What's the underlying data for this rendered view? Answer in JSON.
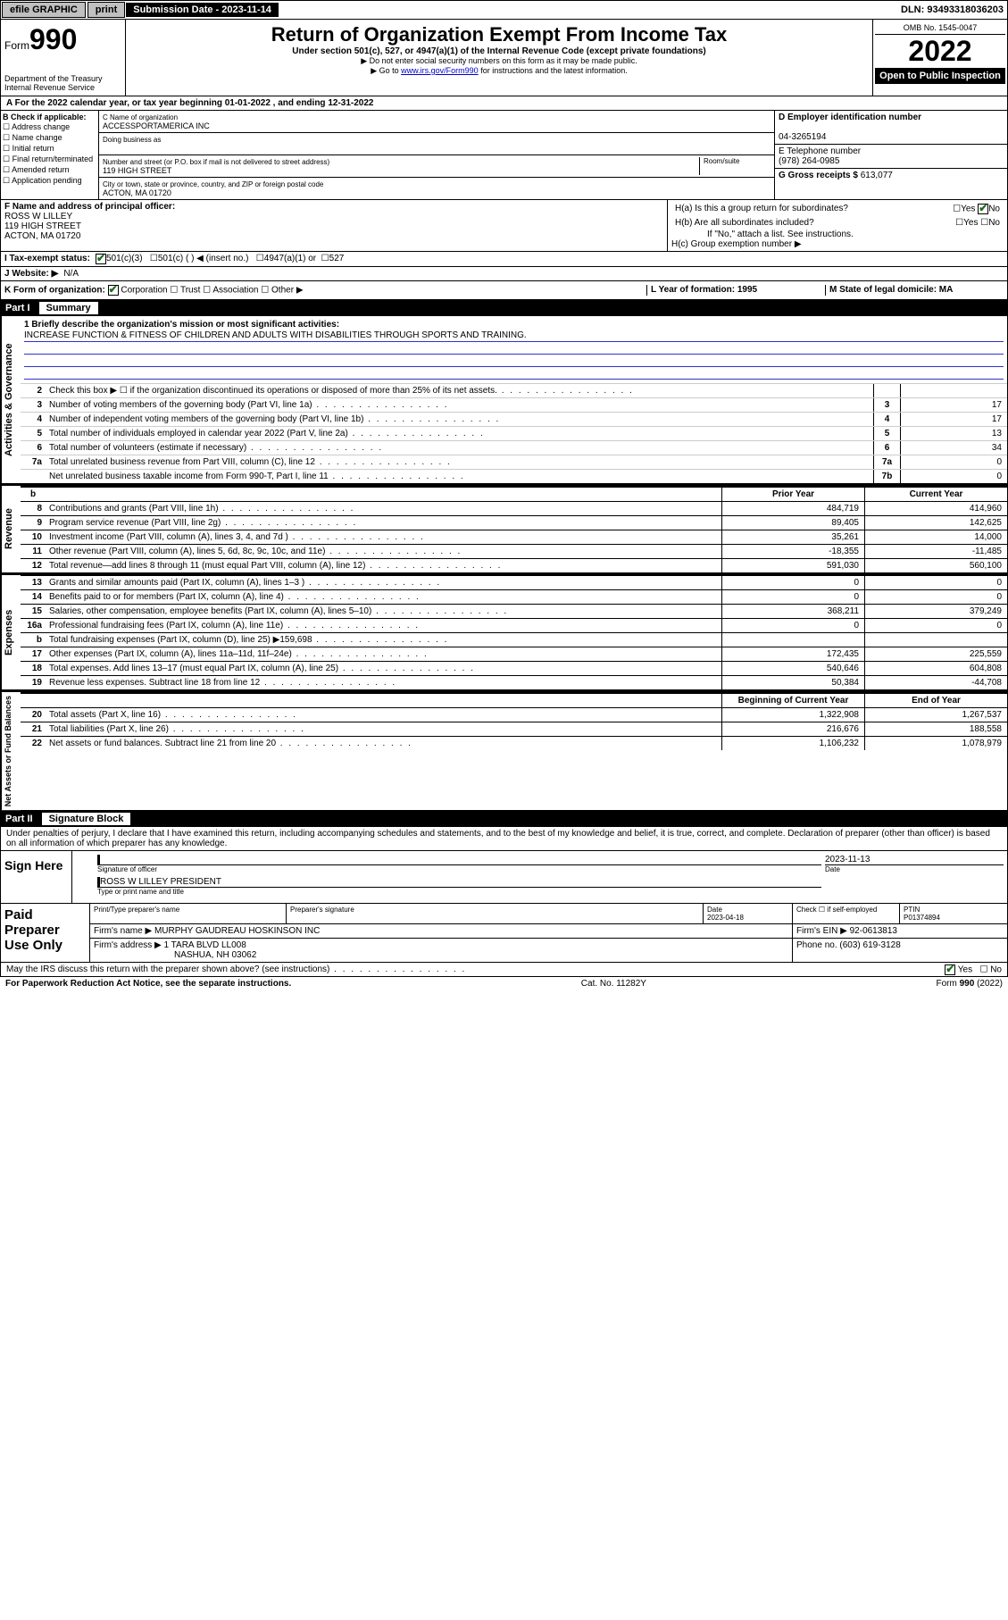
{
  "topbar": {
    "efile": "efile GRAPHIC",
    "print": "print",
    "subdate_label": "Submission Date - 2023-11-14",
    "dln": "DLN: 93493318036203"
  },
  "header": {
    "form_label": "Form",
    "form_no": "990",
    "dept": "Department of the Treasury\nInternal Revenue Service",
    "title": "Return of Organization Exempt From Income Tax",
    "sub1": "Under section 501(c), 527, or 4947(a)(1) of the Internal Revenue Code (except private foundations)",
    "sub2": "▶ Do not enter social security numbers on this form as it may be made public.",
    "sub3": "▶ Go to www.irs.gov/Form990 for instructions and the latest information.",
    "omb": "OMB No. 1545-0047",
    "year": "2022",
    "otp": "Open to Public Inspection"
  },
  "A": {
    "line": "A For the 2022 calendar year, or tax year beginning 01-01-2022   , and ending 12-31-2022"
  },
  "B": {
    "label": "B Check if applicable:",
    "opts": [
      "Address change",
      "Name change",
      "Initial return",
      "Final return/terminated",
      "Amended return",
      "Application pending"
    ]
  },
  "C": {
    "name_label": "C Name of organization",
    "name": "ACCESSPORTAMERICA INC",
    "dba_label": "Doing business as",
    "street_label": "Number and street (or P.O. box if mail is not delivered to street address)",
    "room_label": "Room/suite",
    "street": "119 HIGH STREET",
    "city_label": "City or town, state or province, country, and ZIP or foreign postal code",
    "city": "ACTON, MA  01720"
  },
  "D": {
    "label": "D Employer identification number",
    "val": "04-3265194"
  },
  "E": {
    "label": "E Telephone number",
    "val": "(978) 264-0985"
  },
  "G": {
    "label": "G Gross receipts $",
    "val": "613,077"
  },
  "F": {
    "label": "F Name and address of principal officer:",
    "name": "ROSS W LILLEY",
    "street": "119 HIGH STREET",
    "city": "ACTON, MA  01720"
  },
  "H": {
    "a": "H(a)  Is this a group return for subordinates?",
    "b": "H(b)  Are all subordinates included?",
    "bnote": "If \"No,\" attach a list. See instructions.",
    "c": "H(c)  Group exemption number ▶",
    "yes": "Yes",
    "no": "No"
  },
  "I": {
    "label": "I   Tax-exempt status:",
    "o1": "501(c)(3)",
    "o2": "501(c) (   ) ◀ (insert no.)",
    "o3": "4947(a)(1) or",
    "o4": "527"
  },
  "J": {
    "label": "J   Website: ▶",
    "val": "N/A"
  },
  "K": {
    "label": "K Form of organization:",
    "opts": [
      "Corporation",
      "Trust",
      "Association",
      "Other ▶"
    ]
  },
  "L": {
    "label": "L Year of formation: 1995"
  },
  "M": {
    "label": "M State of legal domicile: MA"
  },
  "part1": {
    "num": "Part I",
    "title": "Summary"
  },
  "mission": {
    "q1": "1  Briefly describe the organization's mission or most significant activities:",
    "text": "INCREASE FUNCTION & FITNESS OF CHILDREN AND ADULTS WITH DISABILITIES THROUGH SPORTS AND TRAINING."
  },
  "gov": [
    {
      "n": "2",
      "t": "Check this box ▶ ☐  if the organization discontinued its operations or disposed of more than 25% of its net assets.",
      "bn": "",
      "bv": ""
    },
    {
      "n": "3",
      "t": "Number of voting members of the governing body (Part VI, line 1a)",
      "bn": "3",
      "bv": "17"
    },
    {
      "n": "4",
      "t": "Number of independent voting members of the governing body (Part VI, line 1b)",
      "bn": "4",
      "bv": "17"
    },
    {
      "n": "5",
      "t": "Total number of individuals employed in calendar year 2022 (Part V, line 2a)",
      "bn": "5",
      "bv": "13"
    },
    {
      "n": "6",
      "t": "Total number of volunteers (estimate if necessary)",
      "bn": "6",
      "bv": "34"
    },
    {
      "n": "7a",
      "t": "Total unrelated business revenue from Part VIII, column (C), line 12",
      "bn": "7a",
      "bv": "0"
    },
    {
      "n": "",
      "t": "Net unrelated business taxable income from Form 990-T, Part I, line 11",
      "bn": "7b",
      "bv": "0"
    }
  ],
  "rhdr": {
    "b": "b",
    "py": "Prior Year",
    "cy": "Current Year"
  },
  "rev": [
    {
      "n": "8",
      "t": "Contributions and grants (Part VIII, line 1h)",
      "pv": "484,719",
      "cv": "414,960"
    },
    {
      "n": "9",
      "t": "Program service revenue (Part VIII, line 2g)",
      "pv": "89,405",
      "cv": "142,625"
    },
    {
      "n": "10",
      "t": "Investment income (Part VIII, column (A), lines 3, 4, and 7d )",
      "pv": "35,261",
      "cv": "14,000"
    },
    {
      "n": "11",
      "t": "Other revenue (Part VIII, column (A), lines 5, 6d, 8c, 9c, 10c, and 11e)",
      "pv": "-18,355",
      "cv": "-11,485"
    },
    {
      "n": "12",
      "t": "Total revenue—add lines 8 through 11 (must equal Part VIII, column (A), line 12)",
      "pv": "591,030",
      "cv": "560,100"
    }
  ],
  "exp": [
    {
      "n": "13",
      "t": "Grants and similar amounts paid (Part IX, column (A), lines 1–3 )",
      "pv": "0",
      "cv": "0"
    },
    {
      "n": "14",
      "t": "Benefits paid to or for members (Part IX, column (A), line 4)",
      "pv": "0",
      "cv": "0"
    },
    {
      "n": "15",
      "t": "Salaries, other compensation, employee benefits (Part IX, column (A), lines 5–10)",
      "pv": "368,211",
      "cv": "379,249"
    },
    {
      "n": "16a",
      "t": "Professional fundraising fees (Part IX, column (A), line 11e)",
      "pv": "0",
      "cv": "0"
    },
    {
      "n": "b",
      "t": "Total fundraising expenses (Part IX, column (D), line 25) ▶159,698",
      "pv": "",
      "cv": ""
    },
    {
      "n": "17",
      "t": "Other expenses (Part IX, column (A), lines 11a–11d, 11f–24e)",
      "pv": "172,435",
      "cv": "225,559"
    },
    {
      "n": "18",
      "t": "Total expenses. Add lines 13–17 (must equal Part IX, column (A), line 25)",
      "pv": "540,646",
      "cv": "604,808"
    },
    {
      "n": "19",
      "t": "Revenue less expenses. Subtract line 18 from line 12",
      "pv": "50,384",
      "cv": "-44,708"
    }
  ],
  "nhdr": {
    "py": "Beginning of Current Year",
    "cy": "End of Year"
  },
  "net": [
    {
      "n": "20",
      "t": "Total assets (Part X, line 16)",
      "pv": "1,322,908",
      "cv": "1,267,537"
    },
    {
      "n": "21",
      "t": "Total liabilities (Part X, line 26)",
      "pv": "216,676",
      "cv": "188,558"
    },
    {
      "n": "22",
      "t": "Net assets or fund balances. Subtract line 21 from line 20",
      "pv": "1,106,232",
      "cv": "1,078,979"
    }
  ],
  "part2": {
    "num": "Part II",
    "title": "Signature Block"
  },
  "penalty": "Under penalties of perjury, I declare that I have examined this return, including accompanying schedules and statements, and to the best of my knowledge and belief, it is true, correct, and complete. Declaration of preparer (other than officer) is based on all information of which preparer has any knowledge.",
  "sign": {
    "here": "Sign Here",
    "sig_label": "Signature of officer",
    "date_label": "Date",
    "date": "2023-11-13",
    "name": "ROSS W LILLEY PRESIDENT",
    "name_label": "Type or print name and title"
  },
  "prep": {
    "label": "Paid Preparer Use Only",
    "h1": "Print/Type preparer's name",
    "h2": "Preparer's signature",
    "h3": "Date",
    "h4": "Check ☐ if self-employed",
    "h5": "PTIN",
    "date": "2023-04-18",
    "ptin": "P01374894",
    "firm_label": "Firm's name   ▶",
    "firm": "MURPHY GAUDREAU HOSKINSON INC",
    "ein_label": "Firm's EIN ▶",
    "ein": "92-0613813",
    "addr_label": "Firm's address ▶",
    "addr1": "1 TARA BLVD LL008",
    "addr2": "NASHUA, NH  03062",
    "phone_label": "Phone no.",
    "phone": "(603) 619-3128"
  },
  "may": {
    "q": "May the IRS discuss this return with the preparer shown above? (see instructions)",
    "yes": "Yes",
    "no": "No"
  },
  "foot": {
    "l": "For Paperwork Reduction Act Notice, see the separate instructions.",
    "c": "Cat. No. 11282Y",
    "r": "Form 990 (2022)"
  },
  "vlabels": {
    "gov": "Activities & Governance",
    "rev": "Revenue",
    "exp": "Expenses",
    "net": "Net Assets or Fund Balances"
  }
}
